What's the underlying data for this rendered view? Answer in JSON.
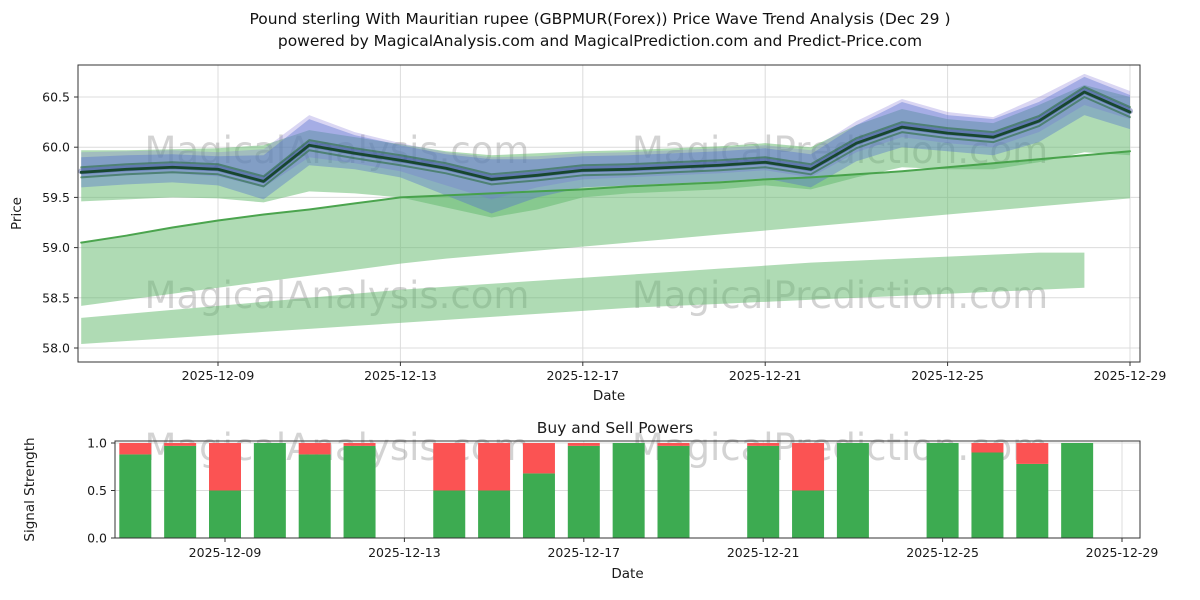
{
  "title": {
    "line1": "Pound sterling With Mauritian rupee (GBPMUR(Forex)) Price Wave Trend Analysis (Dec 29 )",
    "line2": "powered by MagicalAnalysis.com and MagicalPrediction.com and Predict-Price.com"
  },
  "watermarks": {
    "left": "MagicalAnalysis.com",
    "right": "MagicalPrediction.com"
  },
  "chart_data": [
    {
      "type": "area",
      "title": "",
      "xlabel": "Date",
      "ylabel": "Price",
      "ylim": [
        57.86,
        60.82
      ],
      "x_start_date": "2025-12-06",
      "x_ticks": [
        {
          "label": "2025-12-09",
          "day": 3
        },
        {
          "label": "2025-12-13",
          "day": 7
        },
        {
          "label": "2025-12-17",
          "day": 11
        },
        {
          "label": "2025-12-21",
          "day": 15
        },
        {
          "label": "2025-12-25",
          "day": 19
        },
        {
          "label": "2025-12-29",
          "day": 23
        }
      ],
      "y_ticks": [
        {
          "label": "58.0",
          "value": 58.0
        },
        {
          "label": "58.5",
          "value": 58.5
        },
        {
          "label": "59.0",
          "value": 59.0
        },
        {
          "label": "59.5",
          "value": 59.5
        },
        {
          "label": "60.0",
          "value": 60.0
        },
        {
          "label": "60.5",
          "value": 60.5
        }
      ],
      "price": [
        59.75,
        59.78,
        59.8,
        59.78,
        59.66,
        60.02,
        59.94,
        59.87,
        59.79,
        59.68,
        59.72,
        59.77,
        59.78,
        59.8,
        59.82,
        59.85,
        59.78,
        60.04,
        60.2,
        60.14,
        60.1,
        60.26,
        60.55,
        60.35
      ],
      "support": [
        59.05,
        59.12,
        59.2,
        59.27,
        59.33,
        59.38,
        59.44,
        59.5,
        59.52,
        59.54,
        59.56,
        59.58,
        59.61,
        59.63,
        59.65,
        59.68,
        59.7,
        59.73,
        59.76,
        59.8,
        59.84,
        59.88,
        59.92,
        59.96
      ],
      "series": [
        {
          "name": "support-trend-line",
          "source": "support",
          "color": "#43a047",
          "width": 2,
          "opacity": 0.95,
          "offset": 0
        },
        {
          "name": "price-glow-line",
          "source": "price",
          "color": "#2d3c8f",
          "width": 6,
          "opacity": 0.38,
          "offset": 0.01
        },
        {
          "name": "price-fuzz-upper-line",
          "source": "price",
          "color": "#2c6e3f",
          "width": 2,
          "opacity": 0.6,
          "offset": 0.05
        },
        {
          "name": "price-fuzz-lower-line",
          "source": "price",
          "color": "#2c6e3f",
          "width": 2,
          "opacity": 0.6,
          "offset": -0.05
        },
        {
          "name": "price-line",
          "source": "price",
          "color": "#17472e",
          "width": 2.8,
          "opacity": 1,
          "offset": 0
        }
      ],
      "bands": [
        {
          "name": "middle-green-band",
          "color": "#5fb86a",
          "opacity": 0.5,
          "days": [
            0,
            1,
            2,
            3,
            4,
            5,
            6,
            7,
            8,
            9,
            10,
            11,
            12,
            13,
            14,
            15,
            16,
            17,
            18,
            19,
            20,
            21,
            22,
            23
          ],
          "top": [
            59.05,
            59.12,
            59.2,
            59.27,
            59.33,
            59.38,
            59.44,
            59.5,
            59.52,
            59.54,
            59.56,
            59.58,
            59.61,
            59.63,
            59.65,
            59.68,
            59.7,
            59.73,
            59.76,
            59.8,
            59.84,
            59.88,
            59.92,
            59.96
          ],
          "bottom": [
            58.42,
            58.48,
            58.54,
            58.6,
            58.66,
            58.72,
            58.78,
            58.84,
            58.89,
            58.93,
            58.97,
            59.01,
            59.05,
            59.09,
            59.13,
            59.17,
            59.21,
            59.25,
            59.29,
            59.33,
            59.37,
            59.41,
            59.45,
            59.49
          ]
        },
        {
          "name": "lower-green-band",
          "color": "#5fb86a",
          "opacity": 0.5,
          "days": [
            0,
            1,
            2,
            3,
            4,
            5,
            6,
            7,
            8,
            9,
            10,
            11,
            12,
            13,
            14,
            15,
            16,
            17,
            18,
            19,
            20,
            21,
            22
          ],
          "top": [
            58.3,
            58.34,
            58.38,
            58.42,
            58.46,
            58.5,
            58.54,
            58.58,
            58.61,
            58.64,
            58.67,
            58.7,
            58.73,
            58.76,
            58.79,
            58.82,
            58.85,
            58.87,
            58.89,
            58.91,
            58.93,
            58.95,
            58.95
          ],
          "bottom": [
            58.04,
            58.07,
            58.1,
            58.13,
            58.16,
            58.19,
            58.22,
            58.25,
            58.28,
            58.31,
            58.34,
            58.37,
            58.4,
            58.42,
            58.44,
            58.46,
            58.48,
            58.5,
            58.52,
            58.54,
            58.56,
            58.58,
            58.6
          ]
        },
        {
          "name": "upper-green-band",
          "color": "#5fb86a",
          "opacity": 0.5,
          "days": [
            0,
            1,
            2,
            3,
            4,
            5,
            6,
            7,
            8,
            9,
            10,
            11,
            12,
            13,
            14,
            15,
            16,
            17,
            18,
            19,
            20,
            21,
            22,
            23
          ],
          "top": [
            59.97,
            59.97,
            59.98,
            59.99,
            60.02,
            60.17,
            60.1,
            60.03,
            59.96,
            59.92,
            59.94,
            59.96,
            59.97,
            59.99,
            60.01,
            60.04,
            60.0,
            60.22,
            60.38,
            60.28,
            60.24,
            60.42,
            60.62,
            60.5
          ],
          "bottom": [
            59.46,
            59.48,
            59.5,
            59.49,
            59.45,
            59.56,
            59.54,
            59.5,
            59.4,
            59.3,
            59.38,
            59.5,
            59.54,
            59.56,
            59.58,
            59.62,
            59.58,
            59.7,
            59.8,
            59.78,
            59.78,
            59.85,
            59.95,
            59.92
          ]
        },
        {
          "name": "purple-forecast-band",
          "color": "#8678d8",
          "opacity": 0.3,
          "days": [
            0,
            1,
            2,
            3,
            4,
            5,
            6,
            7,
            8,
            9,
            10,
            11,
            12,
            13,
            14,
            15,
            16,
            17,
            18,
            19,
            20,
            21,
            22,
            23
          ],
          "top": [
            59.95,
            59.96,
            59.97,
            59.95,
            59.98,
            60.32,
            60.15,
            60.04,
            59.95,
            59.9,
            59.91,
            59.94,
            59.95,
            59.97,
            59.99,
            60.02,
            59.97,
            60.26,
            60.48,
            60.35,
            60.3,
            60.5,
            60.73,
            60.56
          ],
          "bottom": [
            59.7,
            59.72,
            59.74,
            59.71,
            59.6,
            59.9,
            59.84,
            59.76,
            59.62,
            59.48,
            59.6,
            59.68,
            59.7,
            59.72,
            59.74,
            59.77,
            59.7,
            59.95,
            60.1,
            60.04,
            60.0,
            60.15,
            60.42,
            60.28
          ]
        },
        {
          "name": "blue-forecast-band",
          "color": "#4f6bd0",
          "opacity": 0.38,
          "days": [
            0,
            1,
            2,
            3,
            4,
            5,
            6,
            7,
            8,
            9,
            10,
            11,
            12,
            13,
            14,
            15,
            16,
            17,
            18,
            19,
            20,
            21,
            22,
            23
          ],
          "top": [
            59.9,
            59.92,
            59.93,
            59.91,
            59.92,
            60.28,
            60.12,
            60.02,
            59.93,
            59.88,
            59.88,
            59.91,
            59.92,
            59.94,
            59.96,
            59.99,
            59.93,
            60.22,
            60.45,
            60.32,
            60.28,
            60.45,
            60.7,
            60.52
          ],
          "bottom": [
            59.6,
            59.63,
            59.65,
            59.62,
            59.48,
            59.82,
            59.78,
            59.7,
            59.52,
            59.34,
            59.5,
            59.6,
            59.62,
            59.64,
            59.66,
            59.69,
            59.6,
            59.86,
            60.0,
            59.96,
            59.92,
            60.05,
            60.32,
            60.18
          ]
        }
      ]
    },
    {
      "type": "bar",
      "title": "Buy and Sell Powers",
      "xlabel": "Date",
      "ylabel": "Signal Strength",
      "ylim": [
        0,
        1.02
      ],
      "colors": {
        "buy": "#3dab51",
        "sell": "#fb5353"
      },
      "x_ticks": [
        {
          "label": "2025-12-09",
          "day": 3
        },
        {
          "label": "2025-12-13",
          "day": 7
        },
        {
          "label": "2025-12-17",
          "day": 11
        },
        {
          "label": "2025-12-21",
          "day": 15
        },
        {
          "label": "2025-12-25",
          "day": 19
        },
        {
          "label": "2025-12-29",
          "day": 23
        }
      ],
      "y_ticks": [
        {
          "label": "0.0",
          "value": 0.0
        },
        {
          "label": "0.5",
          "value": 0.5
        },
        {
          "label": "1.0",
          "value": 1.0
        }
      ],
      "bars": [
        {
          "date": "2025-12-07",
          "day": 1,
          "buy": 0.88,
          "sell": 0.12
        },
        {
          "date": "2025-12-08",
          "day": 2,
          "buy": 0.97,
          "sell": 0.03
        },
        {
          "date": "2025-12-09",
          "day": 3,
          "buy": 0.5,
          "sell": 0.5
        },
        {
          "date": "2025-12-10",
          "day": 4,
          "buy": 1.0,
          "sell": 0.0
        },
        {
          "date": "2025-12-11",
          "day": 5,
          "buy": 0.88,
          "sell": 0.12
        },
        {
          "date": "2025-12-12",
          "day": 6,
          "buy": 0.97,
          "sell": 0.03
        },
        {
          "date": "2025-12-14",
          "day": 8,
          "buy": 0.5,
          "sell": 0.5
        },
        {
          "date": "2025-12-15",
          "day": 9,
          "buy": 0.5,
          "sell": 0.5
        },
        {
          "date": "2025-12-16",
          "day": 10,
          "buy": 0.68,
          "sell": 0.32
        },
        {
          "date": "2025-12-17",
          "day": 11,
          "buy": 0.97,
          "sell": 0.03
        },
        {
          "date": "2025-12-18",
          "day": 12,
          "buy": 1.0,
          "sell": 0.0
        },
        {
          "date": "2025-12-19",
          "day": 13,
          "buy": 0.97,
          "sell": 0.03
        },
        {
          "date": "2025-12-21",
          "day": 15,
          "buy": 0.97,
          "sell": 0.03
        },
        {
          "date": "2025-12-22",
          "day": 16,
          "buy": 0.5,
          "sell": 0.5
        },
        {
          "date": "2025-12-23",
          "day": 17,
          "buy": 1.0,
          "sell": 0.0
        },
        {
          "date": "2025-12-25",
          "day": 19,
          "buy": 1.0,
          "sell": 0.0
        },
        {
          "date": "2025-12-26",
          "day": 20,
          "buy": 0.9,
          "sell": 0.1
        },
        {
          "date": "2025-12-27",
          "day": 21,
          "buy": 0.78,
          "sell": 0.22
        },
        {
          "date": "2025-12-28",
          "day": 22,
          "buy": 1.0,
          "sell": 0.0
        }
      ]
    }
  ]
}
